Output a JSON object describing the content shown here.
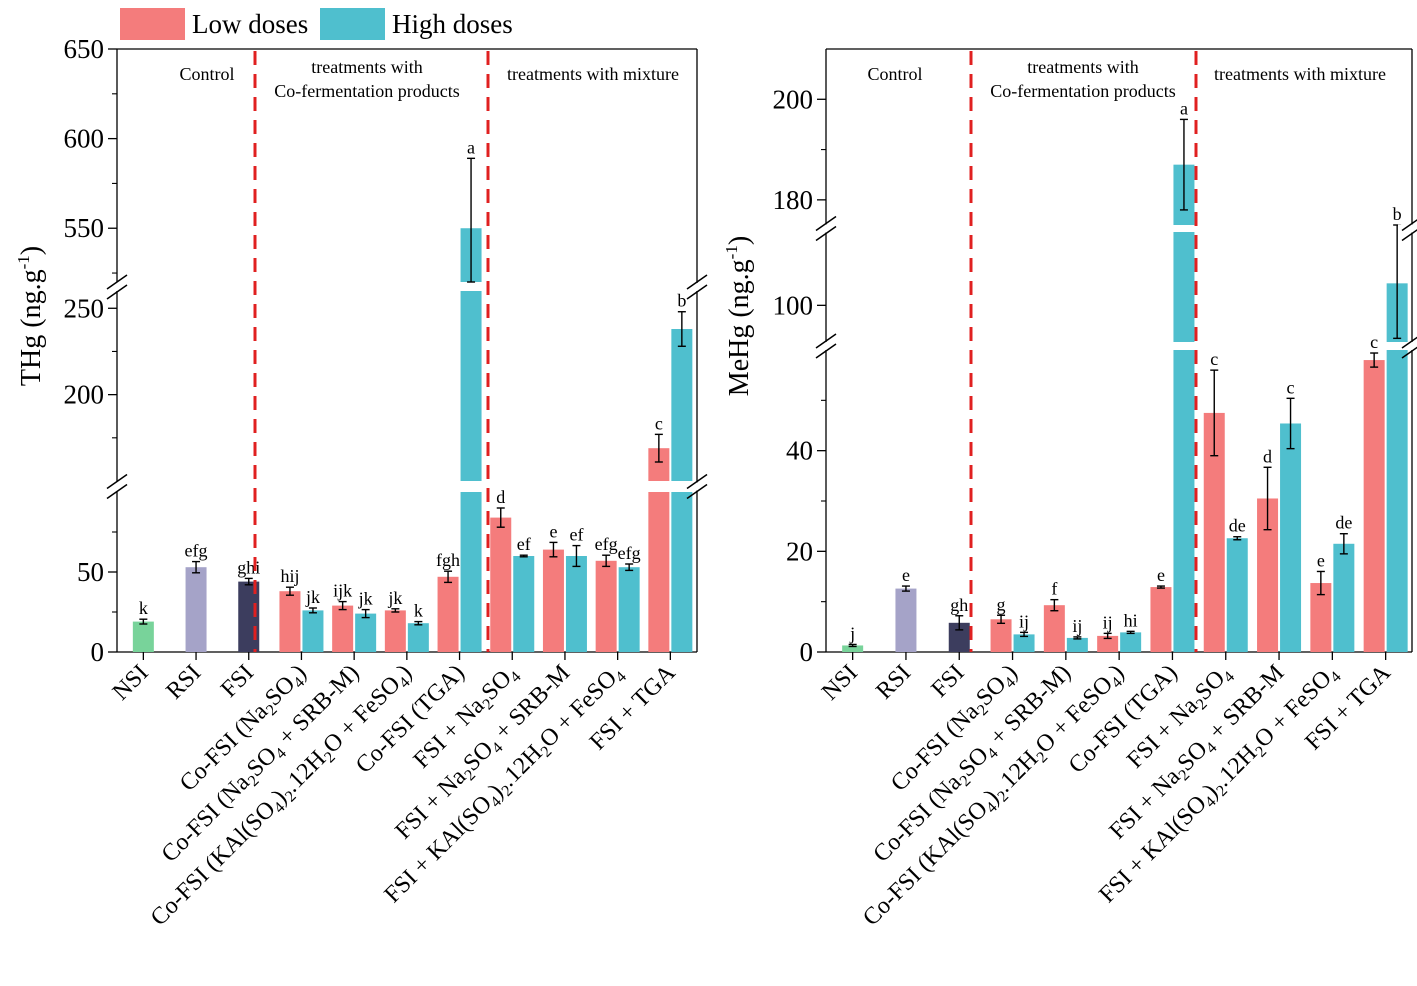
{
  "legend": [
    {
      "label": "Low doses",
      "color": "#f47c7c"
    },
    {
      "label": "High doses",
      "color": "#4fbfce"
    }
  ],
  "colors": {
    "NSI": "#78d39a",
    "RSI": "#a5a3c8",
    "FSI": "#3c3d5e",
    "low": "#f47c7c",
    "high": "#4fbfce",
    "divider": "#e02020"
  },
  "chart_data": [
    {
      "type": "bar",
      "ylabel": "THg (ng.g",
      "ylabel_sup": "-1",
      "ylabel_close": ")",
      "y_segments": [
        [
          0,
          100
        ],
        [
          150,
          260
        ],
        [
          520,
          650
        ]
      ],
      "yticks": [
        0,
        50,
        200,
        250,
        550,
        600,
        650
      ],
      "sections": [
        {
          "label_lines": [
            "Control"
          ]
        },
        {
          "label_lines": [
            "treatments with",
            "Co-fermentation products"
          ]
        },
        {
          "label_lines": [
            "treatments with mixture"
          ]
        }
      ],
      "categories": [
        {
          "parts": [
            [
              "t",
              "NSI"
            ]
          ]
        },
        {
          "parts": [
            [
              "t",
              "RSI"
            ]
          ]
        },
        {
          "parts": [
            [
              "t",
              "FSI"
            ]
          ]
        },
        {
          "parts": [
            [
              "t",
              "Co-FSI (Na"
            ],
            [
              "s",
              "2"
            ],
            [
              "t",
              "SO"
            ],
            [
              "s",
              "4"
            ],
            [
              "t",
              ")"
            ]
          ]
        },
        {
          "parts": [
            [
              "t",
              "Co-FSI (Na"
            ],
            [
              "s",
              "2"
            ],
            [
              "t",
              "SO"
            ],
            [
              "s",
              "4"
            ],
            [
              "t",
              " + SRB-M)"
            ]
          ]
        },
        {
          "parts": [
            [
              "t",
              "Co-FSI (KAl(SO"
            ],
            [
              "s",
              "4"
            ],
            [
              "t",
              ")"
            ],
            [
              "s",
              "2"
            ],
            [
              "t",
              ".12H"
            ],
            [
              "s",
              "2"
            ],
            [
              "t",
              "O + FeSO"
            ],
            [
              "s",
              "4"
            ],
            [
              "t",
              ")"
            ]
          ]
        },
        {
          "parts": [
            [
              "t",
              "Co-FSI (TGA)"
            ]
          ]
        },
        {
          "parts": [
            [
              "t",
              "FSI + Na"
            ],
            [
              "s",
              "2"
            ],
            [
              "t",
              "SO"
            ],
            [
              "s",
              "4"
            ]
          ]
        },
        {
          "parts": [
            [
              "t",
              "FSI + Na"
            ],
            [
              "s",
              "2"
            ],
            [
              "t",
              "SO"
            ],
            [
              "s",
              "4"
            ],
            [
              "t",
              " + SRB-M"
            ]
          ]
        },
        {
          "parts": [
            [
              "t",
              "FSI + KAl(SO"
            ],
            [
              "s",
              "4"
            ],
            [
              "t",
              ")"
            ],
            [
              "s",
              "2"
            ],
            [
              "t",
              ".12H"
            ],
            [
              "s",
              "2"
            ],
            [
              "t",
              "O + FeSO"
            ],
            [
              "s",
              "4"
            ]
          ]
        },
        {
          "parts": [
            [
              "t",
              "FSI + TGA"
            ]
          ]
        }
      ],
      "bars": [
        {
          "cat": 0,
          "series": "NSI",
          "value": 19,
          "err": 1.5,
          "letter": "k"
        },
        {
          "cat": 1,
          "series": "RSI",
          "value": 53,
          "err": 3.5,
          "letter": "efg"
        },
        {
          "cat": 2,
          "series": "FSI",
          "value": 44,
          "err": 2,
          "letter": "ghi"
        },
        {
          "cat": 3,
          "series": "Low doses",
          "value": 38,
          "err": 2.5,
          "letter": "hij"
        },
        {
          "cat": 3,
          "series": "High doses",
          "value": 26,
          "err": 1.5,
          "letter": "jk"
        },
        {
          "cat": 4,
          "series": "Low doses",
          "value": 29,
          "err": 2.5,
          "letter": "ijk"
        },
        {
          "cat": 4,
          "series": "High doses",
          "value": 24,
          "err": 2.5,
          "letter": "jk"
        },
        {
          "cat": 5,
          "series": "Low doses",
          "value": 26,
          "err": 1,
          "letter": "jk"
        },
        {
          "cat": 5,
          "series": "High doses",
          "value": 18,
          "err": 1,
          "letter": "k"
        },
        {
          "cat": 6,
          "series": "Low doses",
          "value": 47,
          "err": 3.5,
          "letter": "fgh"
        },
        {
          "cat": 6,
          "series": "High doses",
          "value": 550,
          "err": 39,
          "letter": "a"
        },
        {
          "cat": 7,
          "series": "Low doses",
          "value": 84,
          "err": 6,
          "letter": "d"
        },
        {
          "cat": 7,
          "series": "High doses",
          "value": 60,
          "err": 0.5,
          "letter": "ef"
        },
        {
          "cat": 8,
          "series": "Low doses",
          "value": 64,
          "err": 4.5,
          "letter": "e"
        },
        {
          "cat": 8,
          "series": "High doses",
          "value": 60,
          "err": 6.5,
          "letter": "ef"
        },
        {
          "cat": 9,
          "series": "Low doses",
          "value": 57,
          "err": 3.5,
          "letter": "efg"
        },
        {
          "cat": 9,
          "series": "High doses",
          "value": 53,
          "err": 2,
          "letter": "efg"
        },
        {
          "cat": 10,
          "series": "Low doses",
          "value": 169,
          "err": 8,
          "letter": "c"
        },
        {
          "cat": 10,
          "series": "High doses",
          "value": 238,
          "err": 10,
          "letter": "b"
        }
      ]
    },
    {
      "type": "bar",
      "ylabel": "MeHg (ng.g",
      "ylabel_sup": "-1",
      "ylabel_close": ")",
      "y_segments": [
        [
          0,
          60
        ],
        [
          95,
          110
        ],
        [
          175,
          210
        ]
      ],
      "yticks": [
        0,
        20,
        40,
        100,
        180,
        200
      ],
      "sections": [
        {
          "label_lines": [
            "Control"
          ]
        },
        {
          "label_lines": [
            "treatments with",
            "Co-fermentation products"
          ]
        },
        {
          "label_lines": [
            "treatments with mixture"
          ]
        }
      ],
      "categories": [
        {
          "parts": [
            [
              "t",
              "NSI"
            ]
          ]
        },
        {
          "parts": [
            [
              "t",
              "RSI"
            ]
          ]
        },
        {
          "parts": [
            [
              "t",
              "FSI"
            ]
          ]
        },
        {
          "parts": [
            [
              "t",
              "Co-FSI (Na"
            ],
            [
              "s",
              "2"
            ],
            [
              "t",
              "SO"
            ],
            [
              "s",
              "4"
            ],
            [
              "t",
              ")"
            ]
          ]
        },
        {
          "parts": [
            [
              "t",
              "Co-FSI (Na"
            ],
            [
              "s",
              "2"
            ],
            [
              "t",
              "SO"
            ],
            [
              "s",
              "4"
            ],
            [
              "t",
              " + SRB-M)"
            ]
          ]
        },
        {
          "parts": [
            [
              "t",
              "Co-FSI (KAl(SO"
            ],
            [
              "s",
              "4"
            ],
            [
              "t",
              ")"
            ],
            [
              "s",
              "2"
            ],
            [
              "t",
              ".12H"
            ],
            [
              "s",
              "2"
            ],
            [
              "t",
              "O + FeSO"
            ],
            [
              "s",
              "4"
            ],
            [
              "t",
              ")"
            ]
          ]
        },
        {
          "parts": [
            [
              "t",
              "Co-FSI (TGA)"
            ]
          ]
        },
        {
          "parts": [
            [
              "t",
              "FSI + Na"
            ],
            [
              "s",
              "2"
            ],
            [
              "t",
              "SO"
            ],
            [
              "s",
              "4"
            ]
          ]
        },
        {
          "parts": [
            [
              "t",
              "FSI + Na"
            ],
            [
              "s",
              "2"
            ],
            [
              "t",
              "SO"
            ],
            [
              "s",
              "4"
            ],
            [
              "t",
              " + SRB-M"
            ]
          ]
        },
        {
          "parts": [
            [
              "t",
              "FSI + KAl(SO"
            ],
            [
              "s",
              "4"
            ],
            [
              "t",
              ")"
            ],
            [
              "s",
              "2"
            ],
            [
              "t",
              ".12H"
            ],
            [
              "s",
              "2"
            ],
            [
              "t",
              "O + FeSO"
            ],
            [
              "s",
              "4"
            ]
          ]
        },
        {
          "parts": [
            [
              "t",
              "FSI + TGA"
            ]
          ]
        }
      ],
      "bars": [
        {
          "cat": 0,
          "series": "NSI",
          "value": 1.3,
          "err": 0.2,
          "letter": "j"
        },
        {
          "cat": 1,
          "series": "RSI",
          "value": 12.6,
          "err": 0.5,
          "letter": "e"
        },
        {
          "cat": 2,
          "series": "FSI",
          "value": 5.8,
          "err": 1.4,
          "letter": "gh"
        },
        {
          "cat": 3,
          "series": "Low doses",
          "value": 6.5,
          "err": 0.8,
          "letter": "g"
        },
        {
          "cat": 3,
          "series": "High doses",
          "value": 3.5,
          "err": 0.4,
          "letter": "ij"
        },
        {
          "cat": 4,
          "series": "Low doses",
          "value": 9.3,
          "err": 1.1,
          "letter": "f"
        },
        {
          "cat": 4,
          "series": "High doses",
          "value": 2.8,
          "err": 0.2,
          "letter": "ij"
        },
        {
          "cat": 5,
          "series": "Low doses",
          "value": 3.2,
          "err": 0.5,
          "letter": "ij"
        },
        {
          "cat": 5,
          "series": "High doses",
          "value": 3.9,
          "err": 0.2,
          "letter": "hi"
        },
        {
          "cat": 6,
          "series": "Low doses",
          "value": 12.9,
          "err": 0.2,
          "letter": "e"
        },
        {
          "cat": 6,
          "series": "High doses",
          "value": 187,
          "err": 9,
          "letter": "a"
        },
        {
          "cat": 7,
          "series": "Low doses",
          "value": 47.5,
          "err": 8.5,
          "letter": "c"
        },
        {
          "cat": 7,
          "series": "High doses",
          "value": 22.6,
          "err": 0.3,
          "letter": "de"
        },
        {
          "cat": 8,
          "series": "Low doses",
          "value": 30.5,
          "err": 6.2,
          "letter": "d"
        },
        {
          "cat": 8,
          "series": "High doses",
          "value": 45.4,
          "err": 5,
          "letter": "c"
        },
        {
          "cat": 9,
          "series": "Low doses",
          "value": 13.7,
          "err": 2.3,
          "letter": "e"
        },
        {
          "cat": 9,
          "series": "High doses",
          "value": 21.5,
          "err": 2,
          "letter": "de"
        },
        {
          "cat": 10,
          "series": "Low doses",
          "value": 58,
          "err": 1.4,
          "letter": "c"
        },
        {
          "cat": 10,
          "series": "High doses",
          "value": 103,
          "err": 7.5,
          "letter": "b"
        }
      ]
    }
  ]
}
